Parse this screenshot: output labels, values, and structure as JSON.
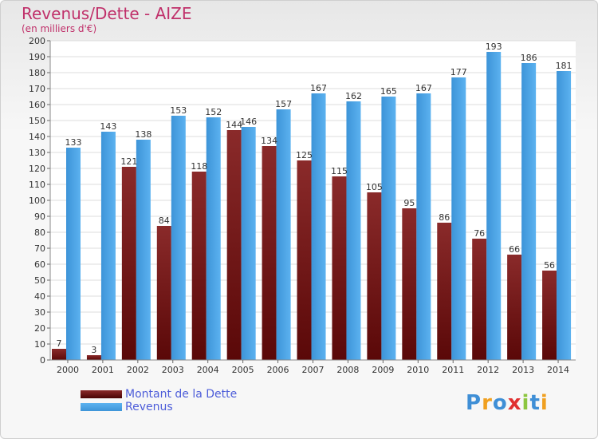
{
  "header": {
    "title": "Revenus/Dette - AIZE",
    "subtitle": "(en milliers d'€)"
  },
  "chart_data": {
    "type": "bar",
    "title": "Revenus/Dette - AIZE",
    "subtitle": "(en milliers d'€)",
    "categories": [
      "2000",
      "2001",
      "2002",
      "2003",
      "2004",
      "2005",
      "2006",
      "2007",
      "2008",
      "2009",
      "2010",
      "2011",
      "2012",
      "2013",
      "2014"
    ],
    "series": [
      {
        "name": "Montant de la Dette",
        "color": "#7a1a1a",
        "values": [
          7,
          3,
          121,
          84,
          118,
          144,
          134,
          125,
          115,
          105,
          95,
          86,
          76,
          66,
          56
        ]
      },
      {
        "name": "Revenus",
        "color": "#4aa3e6",
        "values": [
          133,
          143,
          138,
          153,
          152,
          146,
          157,
          167,
          162,
          165,
          167,
          177,
          193,
          186,
          181
        ]
      }
    ],
    "ylim": [
      0,
      200
    ],
    "y_ticks": [
      0,
      10,
      20,
      30,
      40,
      50,
      60,
      70,
      80,
      90,
      100,
      110,
      120,
      130,
      140,
      150,
      160,
      170,
      180,
      190,
      200
    ],
    "grid": true,
    "legend_position": "bottom-left"
  },
  "legend": {
    "items": [
      {
        "label": "Montant de la Dette",
        "color": "#7a1a1a"
      },
      {
        "label": "Revenus",
        "color": "#4aa3e6"
      }
    ]
  },
  "logo": {
    "text": "Proxiti",
    "letter_colors": [
      "#3f8fd6",
      "#f0a020",
      "#3f8fd6",
      "#e03030",
      "#8cc63f",
      "#3f8fd6",
      "#f0a020"
    ]
  }
}
